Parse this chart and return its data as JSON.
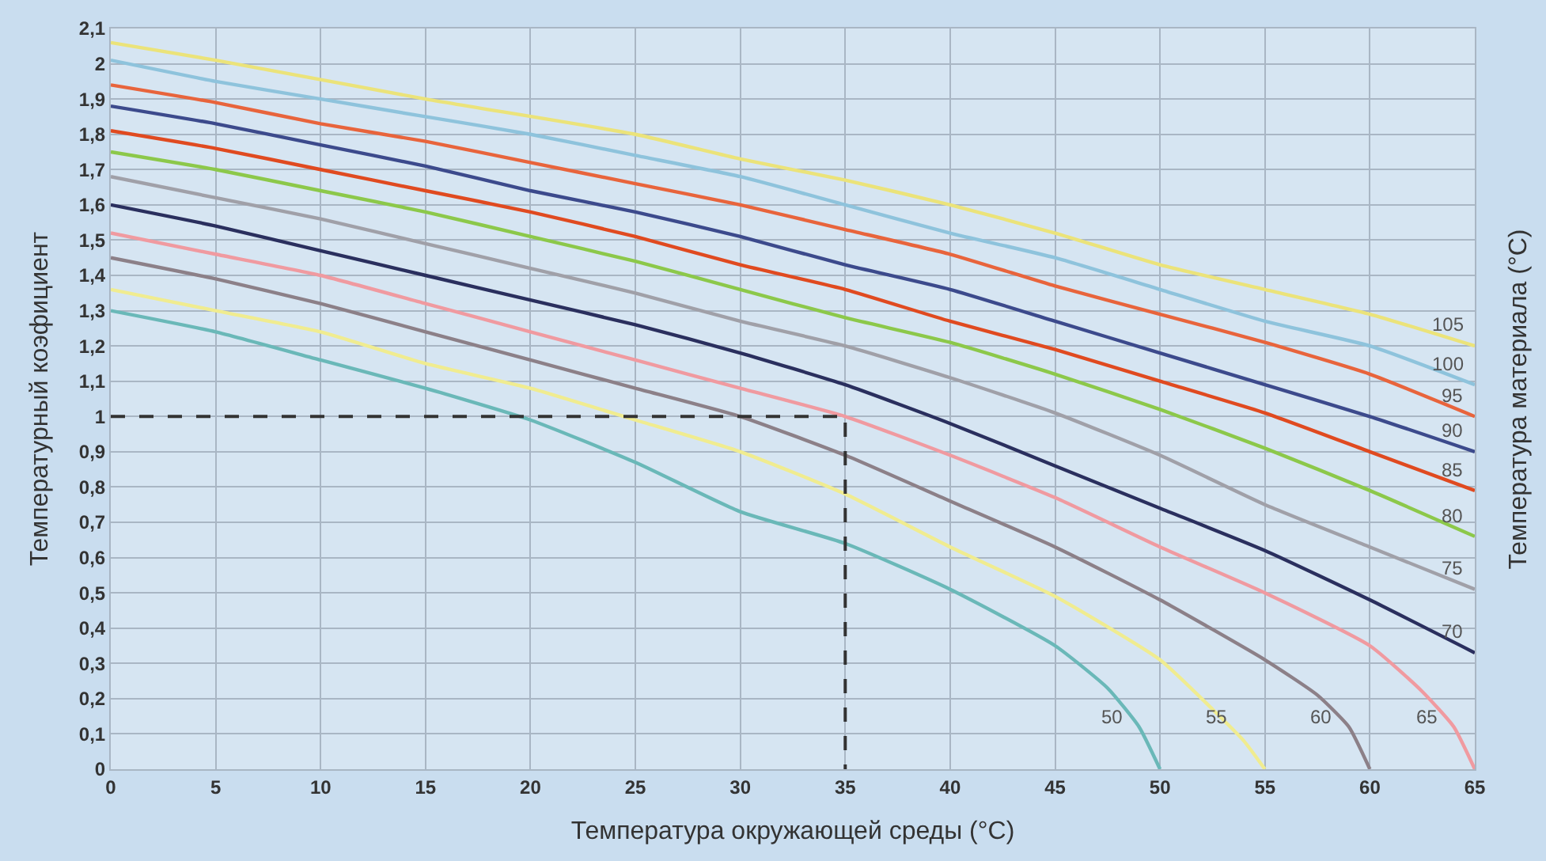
{
  "chart_data": {
    "type": "line",
    "xlabel": "Температура окружающей среды (°C)",
    "ylabel": "Температурный коэфициент",
    "y2label": "Температура материала (°C)",
    "xlim": [
      0,
      65
    ],
    "xticks": [
      0,
      5,
      10,
      15,
      20,
      25,
      30,
      35,
      40,
      45,
      50,
      55,
      60,
      65
    ],
    "ylim": [
      0,
      2.1
    ],
    "yticks": [
      0,
      {
        "value": 0.1,
        "label": "0,1"
      },
      {
        "value": 0.2,
        "label": "0,2"
      },
      {
        "value": 0.3,
        "label": "0,3"
      },
      {
        "value": 0.4,
        "label": "0,4"
      },
      {
        "value": 0.5,
        "label": "0,5"
      },
      {
        "value": 0.6,
        "label": "0,6"
      },
      {
        "value": 0.7,
        "label": "0,7"
      },
      {
        "value": 0.8,
        "label": "0,8"
      },
      {
        "value": 0.9,
        "label": "0,9"
      },
      1,
      {
        "value": 1.1,
        "label": "1,1"
      },
      {
        "value": 1.2,
        "label": "1,2"
      },
      {
        "value": 1.3,
        "label": "1,3"
      },
      {
        "value": 1.4,
        "label": "1,4"
      },
      {
        "value": 1.5,
        "label": "1,5"
      },
      {
        "value": 1.6,
        "label": "1,6"
      },
      {
        "value": 1.7,
        "label": "1,7"
      },
      {
        "value": 1.8,
        "label": "1,8"
      },
      {
        "value": 1.9,
        "label": "1,9"
      },
      2,
      {
        "value": 2.1,
        "label": "2,1"
      }
    ],
    "grid": true,
    "legend": false,
    "marker": "none",
    "line_style": "solid",
    "series": [
      {
        "name": "105",
        "color": "#ebe37a",
        "x": [
          0,
          5,
          15,
          25,
          30,
          35,
          40,
          45,
          50,
          55,
          60,
          65
        ],
        "values": [
          2.06,
          2.01,
          1.9,
          1.8,
          1.73,
          1.67,
          1.6,
          1.52,
          1.43,
          1.36,
          1.29,
          1.2
        ]
      },
      {
        "name": "100",
        "color": "#8ec3dc",
        "x": [
          0,
          5,
          10,
          15,
          20,
          25,
          30,
          35,
          40,
          45,
          50,
          55,
          60,
          65
        ],
        "values": [
          2.01,
          1.95,
          1.9,
          1.85,
          1.8,
          1.74,
          1.68,
          1.6,
          1.52,
          1.45,
          1.36,
          1.27,
          1.2,
          1.09
        ]
      },
      {
        "name": "95",
        "color": "#e8643c",
        "x": [
          0,
          5,
          10,
          15,
          20,
          25,
          30,
          35,
          40,
          45,
          50,
          55,
          60,
          65
        ],
        "values": [
          1.94,
          1.89,
          1.83,
          1.78,
          1.72,
          1.66,
          1.6,
          1.53,
          1.46,
          1.37,
          1.29,
          1.21,
          1.12,
          1.0
        ]
      },
      {
        "name": "90",
        "color": "#3c4a8c",
        "x": [
          0,
          5,
          10,
          15,
          20,
          25,
          30,
          35,
          40,
          45,
          50,
          55,
          60,
          65
        ],
        "values": [
          1.88,
          1.83,
          1.77,
          1.71,
          1.64,
          1.58,
          1.51,
          1.43,
          1.36,
          1.27,
          1.18,
          1.09,
          1.0,
          0.9
        ]
      },
      {
        "name": "85",
        "color": "#e04a20",
        "x": [
          0,
          5,
          10,
          15,
          20,
          25,
          30,
          35,
          40,
          45,
          50,
          55,
          60,
          65
        ],
        "values": [
          1.81,
          1.76,
          1.7,
          1.64,
          1.58,
          1.51,
          1.43,
          1.36,
          1.27,
          1.19,
          1.1,
          1.01,
          0.9,
          0.79
        ]
      },
      {
        "name": "80",
        "color": "#8cc84a",
        "x": [
          0,
          5,
          10,
          15,
          20,
          25,
          30,
          35,
          40,
          45,
          50,
          55,
          60,
          65
        ],
        "values": [
          1.75,
          1.7,
          1.64,
          1.58,
          1.51,
          1.44,
          1.36,
          1.28,
          1.21,
          1.12,
          1.02,
          0.91,
          0.79,
          0.66
        ]
      },
      {
        "name": "75",
        "color": "#a0a0a8",
        "x": [
          0,
          5,
          10,
          15,
          20,
          25,
          30,
          35,
          40,
          45,
          50,
          55,
          60,
          65
        ],
        "values": [
          1.68,
          1.62,
          1.56,
          1.49,
          1.42,
          1.35,
          1.27,
          1.2,
          1.11,
          1.01,
          0.89,
          0.75,
          0.63,
          0.51
        ]
      },
      {
        "name": "70",
        "color": "#2a2f5e",
        "x": [
          0,
          5,
          10,
          15,
          20,
          25,
          30,
          35,
          40,
          45,
          50,
          55,
          60,
          65
        ],
        "values": [
          1.6,
          1.54,
          1.47,
          1.4,
          1.33,
          1.26,
          1.18,
          1.09,
          0.98,
          0.86,
          0.74,
          0.62,
          0.48,
          0.33
        ]
      },
      {
        "name": "65",
        "color": "#f09aa0",
        "x": [
          0,
          5,
          10,
          15,
          20,
          25,
          30,
          35,
          40,
          45,
          50,
          55,
          60,
          62.5,
          64,
          65
        ],
        "values": [
          1.52,
          1.46,
          1.4,
          1.32,
          1.24,
          1.16,
          1.08,
          1.0,
          0.89,
          0.77,
          0.63,
          0.5,
          0.35,
          0.22,
          0.12,
          0
        ]
      },
      {
        "name": "60",
        "color": "#8c8088",
        "x": [
          0,
          5,
          10,
          15,
          20,
          25,
          30,
          35,
          40,
          45,
          50,
          55,
          57.5,
          59,
          60
        ],
        "values": [
          1.45,
          1.39,
          1.32,
          1.24,
          1.16,
          1.08,
          1.0,
          0.89,
          0.76,
          0.63,
          0.48,
          0.31,
          0.21,
          0.12,
          0
        ]
      },
      {
        "name": "55",
        "color": "#f0ec90",
        "x": [
          0,
          5,
          10,
          15,
          20,
          25,
          30,
          35,
          40,
          45,
          50,
          52.5,
          54,
          55
        ],
        "values": [
          1.36,
          1.3,
          1.24,
          1.15,
          1.08,
          0.99,
          0.9,
          0.78,
          0.63,
          0.49,
          0.31,
          0.17,
          0.08,
          0
        ]
      },
      {
        "name": "50",
        "color": "#6ab8b8",
        "x": [
          0,
          5,
          10,
          15,
          20,
          25,
          30,
          35,
          40,
          45,
          47.5,
          49,
          50
        ],
        "values": [
          1.3,
          1.24,
          1.16,
          1.08,
          0.99,
          0.87,
          0.73,
          0.64,
          0.51,
          0.35,
          0.23,
          0.12,
          0
        ]
      },
      {
        "color": "#333333",
        "line_style": "dashed",
        "x": [
          0,
          35,
          35
        ],
        "values": [
          1,
          1,
          0
        ]
      }
    ]
  }
}
